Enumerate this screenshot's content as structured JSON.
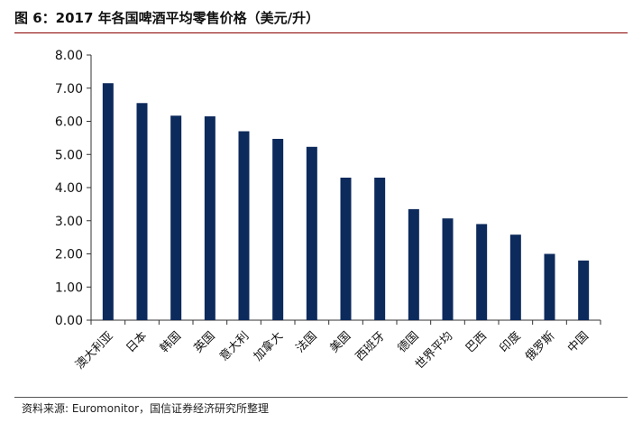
{
  "title": "图 6：2017 年各国啤酒平均零售价格（美元/升）",
  "source": "资料来源: Euromonitor，国信证券经济研究所整理",
  "colors": {
    "bar": "#0d2a5c",
    "axis": "#333333",
    "accent_line": "#8b0000"
  },
  "chart_data": {
    "type": "bar",
    "title": "",
    "xlabel": "",
    "ylabel": "",
    "ylim": [
      0,
      8
    ],
    "yticks": [
      "0.00",
      "1.00",
      "2.00",
      "3.00",
      "4.00",
      "5.00",
      "6.00",
      "7.00",
      "8.00"
    ],
    "grid": false,
    "categories": [
      "澳大利亚",
      "日本",
      "韩国",
      "英国",
      "意大利",
      "加拿大",
      "法国",
      "美国",
      "西班牙",
      "德国",
      "世界平均",
      "巴西",
      "印度",
      "俄罗斯",
      "中国"
    ],
    "values": [
      7.15,
      6.55,
      6.17,
      6.15,
      5.7,
      5.47,
      5.23,
      4.3,
      4.3,
      3.35,
      3.07,
      2.9,
      2.58,
      2.0,
      1.8
    ]
  }
}
